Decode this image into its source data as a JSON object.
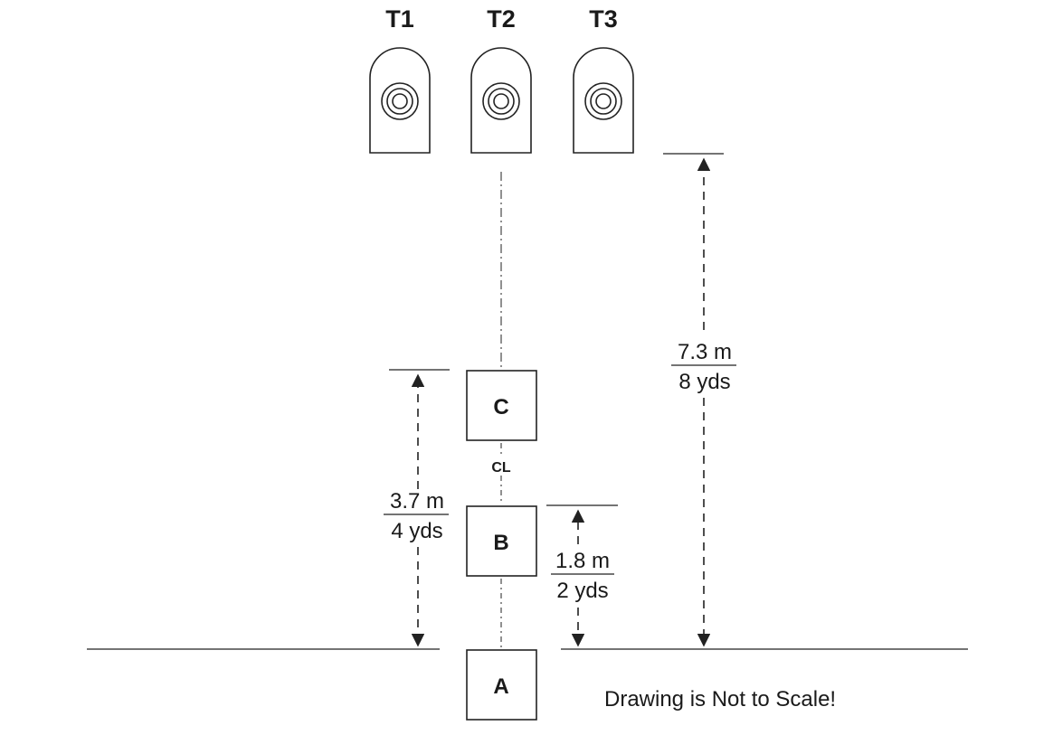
{
  "targets": [
    {
      "label": "T1"
    },
    {
      "label": "T2"
    },
    {
      "label": "T3"
    }
  ],
  "positions": {
    "a": "A",
    "b": "B",
    "c": "C"
  },
  "centerline_label": "CL",
  "dimensions": {
    "left": {
      "metric": "3.7 m",
      "imperial": "4 yds"
    },
    "middle": {
      "metric": "1.8 m",
      "imperial": "2 yds"
    },
    "right": {
      "metric": "7.3 m",
      "imperial": "8 yds"
    }
  },
  "note": "Drawing is Not to Scale!"
}
